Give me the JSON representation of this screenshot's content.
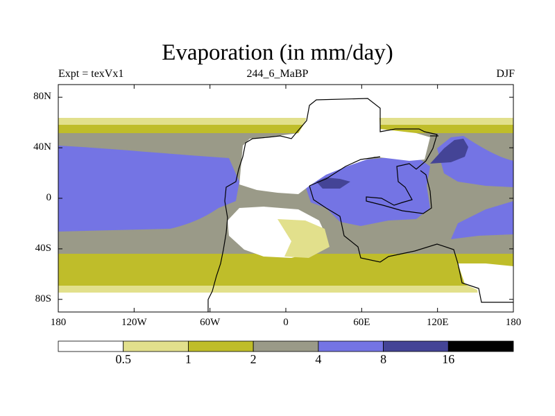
{
  "header": {
    "title": "Evaporation (in mm/day)",
    "left_label": "Expt = texVx1",
    "center_label": "244_6_MaBP",
    "right_label": "DJF"
  },
  "axes": {
    "y_ticks": [
      {
        "lat": 80,
        "label": "80N"
      },
      {
        "lat": 40,
        "label": "40N"
      },
      {
        "lat": 0,
        "label": "0"
      },
      {
        "lat": -40,
        "label": "40S"
      },
      {
        "lat": -80,
        "label": "80S"
      }
    ],
    "x_ticks": [
      {
        "lon": -180,
        "label": "180"
      },
      {
        "lon": -120,
        "label": "120W"
      },
      {
        "lon": -60,
        "label": "60W"
      },
      {
        "lon": 0,
        "label": "0"
      },
      {
        "lon": 60,
        "label": "60E"
      },
      {
        "lon": 120,
        "label": "120E"
      },
      {
        "lon": 180,
        "label": "180"
      }
    ]
  },
  "colorbar": {
    "colors": [
      "#ffffff",
      "#e2e08c",
      "#bfbd2a",
      "#9a9a88",
      "#7474e4",
      "#444496",
      "#000000"
    ],
    "labels": [
      "0.5",
      "1",
      "2",
      "4",
      "8",
      "16"
    ]
  },
  "legend_colors": {
    "c0": "#ffffff",
    "c1": "#e2e08c",
    "c2": "#bfbd2a",
    "c3": "#9a9a88",
    "c4": "#7474e4",
    "c5": "#444496",
    "c6": "#000000"
  }
}
